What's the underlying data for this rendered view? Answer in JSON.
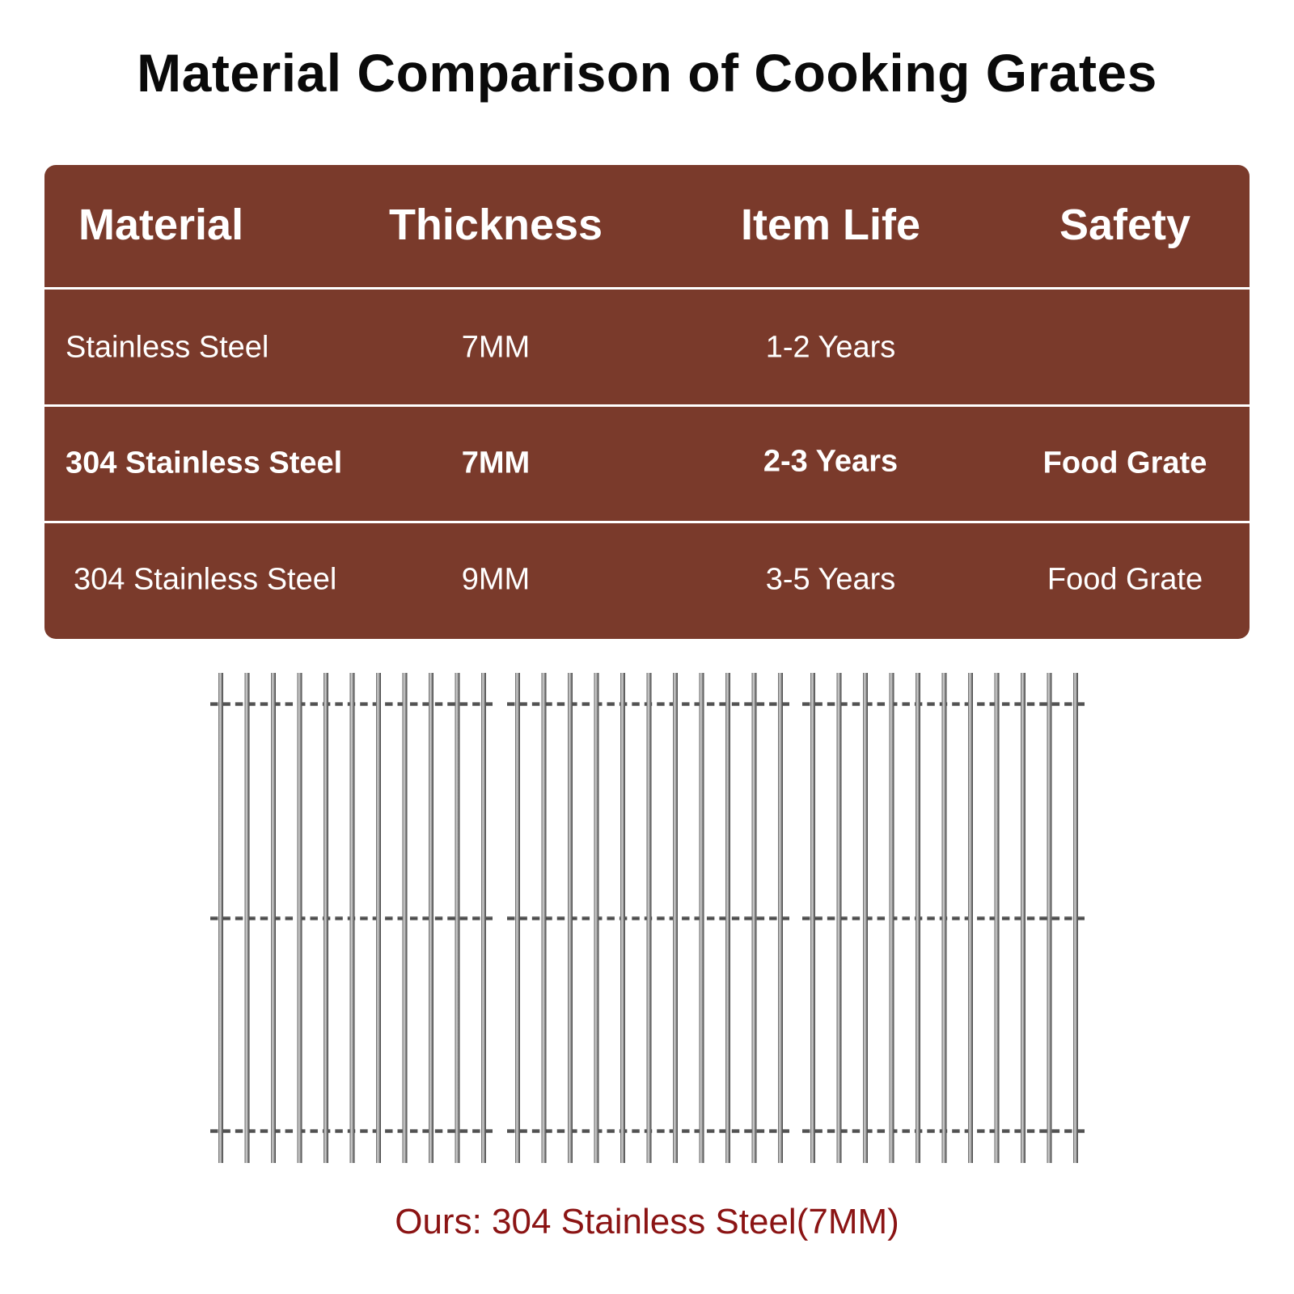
{
  "title": "Material Comparison of Cooking Grates",
  "table": {
    "headers": [
      "Material",
      "Thickness",
      "Item Life",
      "Safety"
    ],
    "rows": [
      {
        "material": "Stainless Steel",
        "thickness": "7MM",
        "item_life": "1-2 Years",
        "safety": ""
      },
      {
        "material": "304 Stainless Steel",
        "thickness": "7MM",
        "item_life": "2-3 Years",
        "safety": "Food Grate"
      },
      {
        "material": "304 Stainless Steel",
        "thickness": "9MM",
        "item_life": "3-5 Years",
        "safety": "Food Grate"
      }
    ],
    "color": "#7a3a2b"
  },
  "grates": {
    "count": 3,
    "bars_per_grate": 11
  },
  "caption": "Ours: 304 Stainless Steel(7MM)",
  "caption_color": "#8b1414"
}
